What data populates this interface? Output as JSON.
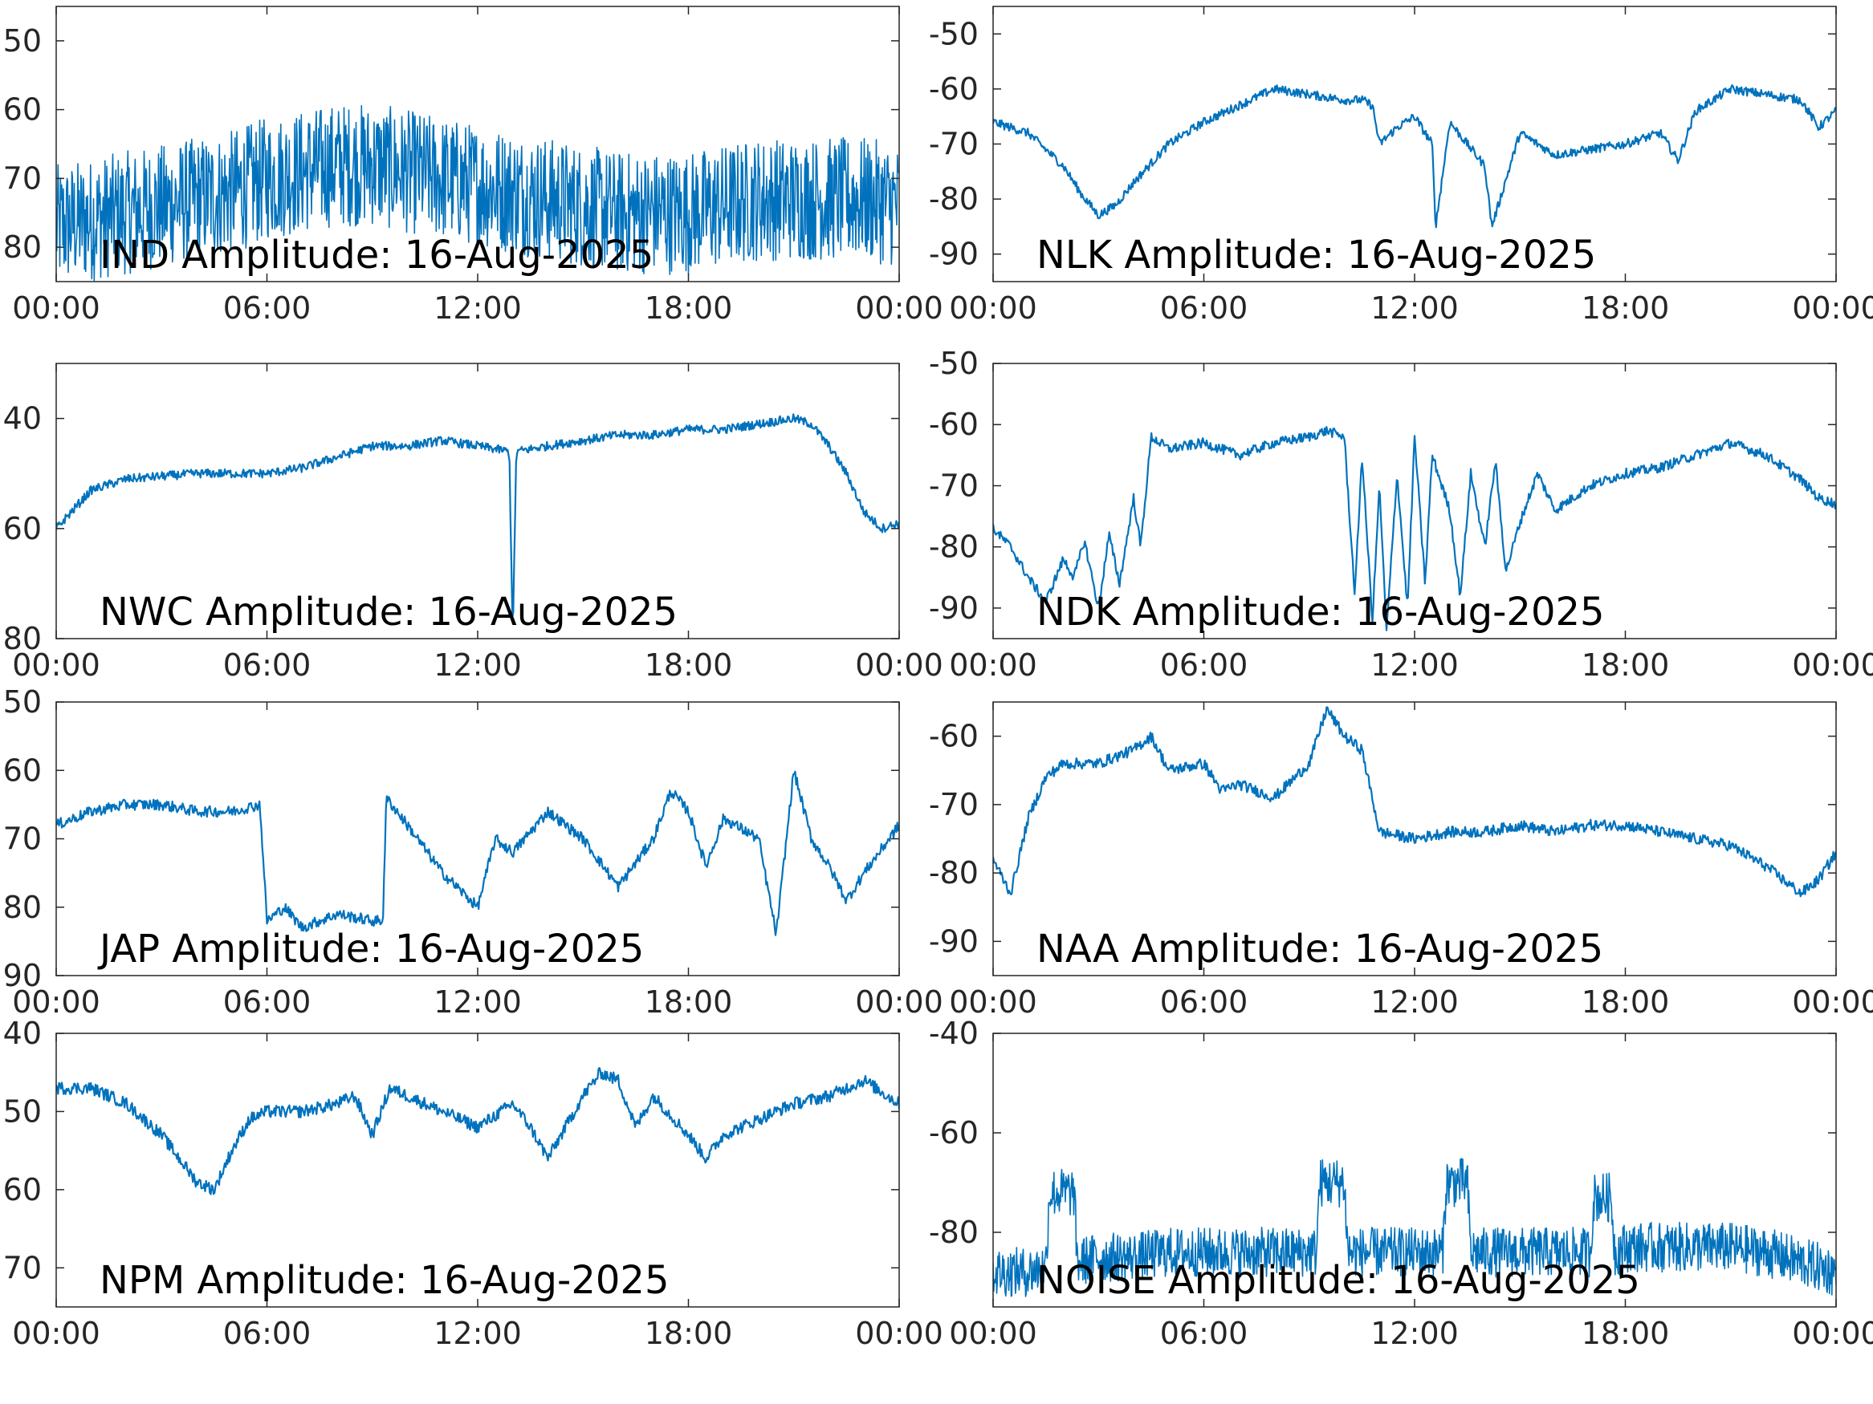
{
  "chart_data": [
    {
      "type": "line",
      "title": "IND Amplitude: 16-Aug-2025",
      "x_ticks": [
        "00:00",
        "06:00",
        "12:00",
        "18:00",
        "00:00"
      ],
      "y_ticks": [
        "50",
        "60",
        "70",
        "80"
      ],
      "xlim": [
        0,
        24
      ],
      "ylim": [
        -85,
        -45
      ],
      "line_color": "#0072bd",
      "style": "noisy",
      "series": [
        {
          "x": [
            0,
            1,
            2,
            3,
            4,
            5,
            6,
            7,
            8,
            9,
            10,
            11,
            12,
            13,
            14,
            15,
            16,
            17,
            18,
            19,
            20,
            21,
            22,
            23,
            24
          ],
          "values": [
            -77,
            -76,
            -75,
            -74,
            -73,
            -72,
            -70,
            -69,
            -68,
            -68,
            -69,
            -70,
            -71,
            -72,
            -73,
            -74,
            -75,
            -75,
            -75,
            -74,
            -73,
            -73,
            -73,
            -73,
            -74
          ]
        }
      ]
    },
    {
      "type": "line",
      "title": "NLK Amplitude: 16-Aug-2025",
      "x_ticks": [
        "00:00",
        "06:00",
        "12:00",
        "18:00",
        "00:00"
      ],
      "y_ticks": [
        "-50",
        "-60",
        "-70",
        "-80",
        "-90"
      ],
      "xlim": [
        0,
        24
      ],
      "ylim": [
        -95,
        -45
      ],
      "line_color": "#0072bd",
      "style": "line",
      "series": [
        {
          "x": [
            0,
            1,
            2,
            2.5,
            3,
            3.5,
            4,
            5,
            6,
            7,
            8,
            9,
            10,
            10.5,
            10.8,
            11,
            11.5,
            12,
            12.5,
            12.6,
            13,
            14,
            14.2,
            15,
            16,
            17,
            18,
            19,
            19.5,
            20,
            21,
            22,
            23,
            23.5,
            24
          ],
          "values": [
            -66,
            -68,
            -74,
            -79,
            -83,
            -81,
            -77,
            -70,
            -66,
            -63,
            -60,
            -61,
            -62,
            -62,
            -63,
            -70,
            -67,
            -65,
            -70,
            -85,
            -66,
            -74,
            -85,
            -68,
            -72,
            -71,
            -70,
            -68,
            -73,
            -64,
            -60,
            -61,
            -62,
            -67,
            -64
          ]
        }
      ]
    },
    {
      "type": "line",
      "title": "NWC Amplitude: 16-Aug-2025",
      "x_ticks": [
        "00:00",
        "06:00",
        "12:00",
        "18:00",
        "00:00"
      ],
      "y_ticks": [
        "40",
        "60",
        "80"
      ],
      "xlim": [
        0,
        24
      ],
      "ylim": [
        -80,
        -30
      ],
      "line_color": "#0072bd",
      "style": "line",
      "series": [
        {
          "x": [
            0,
            1,
            2,
            4,
            6,
            7,
            8,
            9,
            10,
            11,
            12,
            12.9,
            13,
            13.1,
            14,
            15,
            16,
            17,
            18,
            19,
            20,
            21,
            21.5,
            22,
            22.5,
            23,
            23.5,
            24
          ],
          "values": [
            -60,
            -53,
            -51,
            -50,
            -50,
            -49,
            -47,
            -45,
            -45,
            -44,
            -45,
            -46,
            -80,
            -46,
            -45,
            -44,
            -43,
            -43,
            -42,
            -42,
            -41,
            -40,
            -41,
            -45,
            -50,
            -57,
            -60,
            -59
          ]
        }
      ]
    },
    {
      "type": "line",
      "title": "NDK Amplitude: 16-Aug-2025",
      "x_ticks": [
        "00:00",
        "06:00",
        "12:00",
        "18:00",
        "00:00"
      ],
      "y_ticks": [
        "-50",
        "-60",
        "-70",
        "-80",
        "-90"
      ],
      "xlim": [
        0,
        24
      ],
      "ylim": [
        -95,
        -50
      ],
      "line_color": "#0072bd",
      "style": "line",
      "series": [
        {
          "x": [
            0,
            0.5,
            1,
            1.5,
            2,
            2.3,
            2.6,
            3,
            3.3,
            3.6,
            4,
            4.2,
            4.5,
            5,
            6,
            7,
            8,
            9,
            9.5,
            10,
            10.3,
            10.5,
            10.8,
            11,
            11.2,
            11.5,
            11.8,
            12,
            12.3,
            12.5,
            13,
            13.3,
            13.6,
            14,
            14.3,
            14.6,
            15,
            15.5,
            16,
            17,
            18,
            19,
            20,
            21,
            22,
            23,
            23.5,
            24
          ],
          "values": [
            -77,
            -80,
            -85,
            -89,
            -82,
            -85,
            -79,
            -90,
            -78,
            -86,
            -72,
            -80,
            -62,
            -64,
            -63,
            -65,
            -63,
            -62,
            -61,
            -62,
            -88,
            -65,
            -92,
            -70,
            -94,
            -68,
            -90,
            -62,
            -86,
            -65,
            -74,
            -88,
            -68,
            -80,
            -66,
            -84,
            -76,
            -68,
            -74,
            -70,
            -68,
            -67,
            -65,
            -63,
            -65,
            -69,
            -72,
            -73
          ]
        }
      ]
    },
    {
      "type": "line",
      "title": "JAP Amplitude: 16-Aug-2025",
      "x_ticks": [
        "00:00",
        "06:00",
        "12:00",
        "18:00",
        "00:00"
      ],
      "y_ticks": [
        "50",
        "60",
        "70",
        "80",
        "90"
      ],
      "xlim": [
        0,
        24
      ],
      "ylim": [
        -90,
        -50
      ],
      "line_color": "#0072bd",
      "style": "line",
      "series": [
        {
          "x": [
            0,
            1,
            2,
            3,
            4,
            5,
            5.8,
            6,
            6.5,
            7,
            8,
            9,
            9.3,
            9.4,
            10,
            11,
            12,
            12.5,
            13,
            14,
            14.5,
            15,
            16,
            17,
            17.5,
            18,
            18.5,
            19,
            20,
            20.5,
            21,
            21.5,
            22,
            22.5,
            23,
            24
          ],
          "values": [
            -68,
            -66,
            -65,
            -65,
            -66,
            -66,
            -65,
            -82,
            -80,
            -83,
            -81,
            -82,
            -82,
            -64,
            -68,
            -75,
            -80,
            -70,
            -72,
            -66,
            -68,
            -70,
            -77,
            -70,
            -63,
            -66,
            -74,
            -67,
            -70,
            -84,
            -60,
            -70,
            -74,
            -79,
            -75,
            -68
          ]
        }
      ]
    },
    {
      "type": "line",
      "title": "NAA Amplitude: 16-Aug-2025",
      "x_ticks": [
        "00:00",
        "06:00",
        "12:00",
        "18:00",
        "00:00"
      ],
      "y_ticks": [
        "-60",
        "-70",
        "-80",
        "-90"
      ],
      "xlim": [
        0,
        24
      ],
      "ylim": [
        -95,
        -55
      ],
      "line_color": "#0072bd",
      "style": "line",
      "series": [
        {
          "x": [
            0,
            0.5,
            1,
            1.5,
            2,
            3,
            4,
            4.5,
            5,
            6,
            6.5,
            7,
            8,
            9,
            9.5,
            10,
            10.5,
            11,
            12,
            13,
            14,
            15,
            16,
            17,
            18,
            19,
            20,
            21,
            22,
            23,
            23.5,
            24
          ],
          "values": [
            -78,
            -83,
            -72,
            -66,
            -64,
            -64,
            -62,
            -60,
            -65,
            -64,
            -68,
            -67,
            -69,
            -64,
            -56,
            -60,
            -62,
            -74,
            -75,
            -74,
            -74,
            -73,
            -74,
            -73,
            -73,
            -74,
            -75,
            -76,
            -79,
            -83,
            -81,
            -77
          ]
        }
      ]
    },
    {
      "type": "line",
      "title": "NPM Amplitude: 16-Aug-2025",
      "x_ticks": [
        "00:00",
        "06:00",
        "12:00",
        "18:00",
        "00:00"
      ],
      "y_ticks": [
        "40",
        "50",
        "60",
        "70"
      ],
      "xlim": [
        0,
        24
      ],
      "ylim": [
        -75,
        -40
      ],
      "line_color": "#0072bd",
      "style": "line",
      "series": [
        {
          "x": [
            0,
            1,
            2,
            3,
            3.5,
            4,
            4.5,
            5,
            5.5,
            6,
            7,
            8,
            8.5,
            9,
            9.5,
            10,
            11,
            12,
            13,
            13.5,
            14,
            14.5,
            15,
            15.5,
            16,
            16.5,
            17,
            18,
            18.5,
            19,
            20,
            21,
            22,
            23,
            24
          ],
          "values": [
            -47,
            -47,
            -49,
            -53,
            -56,
            -59,
            -60,
            -55,
            -51,
            -50,
            -50,
            -49,
            -48,
            -53,
            -47,
            -48,
            -50,
            -52,
            -49,
            -52,
            -56,
            -52,
            -48,
            -45,
            -46,
            -52,
            -48,
            -53,
            -56,
            -53,
            -51,
            -49,
            -48,
            -46,
            -49
          ]
        }
      ]
    },
    {
      "type": "line",
      "title": "NOISE Amplitude: 16-Aug-2025",
      "x_ticks": [
        "00:00",
        "06:00",
        "12:00",
        "18:00",
        "00:00"
      ],
      "y_ticks": [
        "-40",
        "-60",
        "-80"
      ],
      "xlim": [
        0,
        24
      ],
      "ylim": [
        -95,
        -40
      ],
      "line_color": "#0072bd",
      "style": "noisy",
      "series": [
        {
          "x": [
            0,
            1,
            1.5,
            1.6,
            2.3,
            2.4,
            3,
            4,
            5,
            6,
            7,
            8,
            9,
            9.2,
            9.3,
            10,
            10.1,
            11,
            12,
            12.8,
            12.9,
            13.5,
            13.6,
            14,
            15,
            16,
            17,
            17.1,
            17.6,
            17.7,
            18,
            19,
            20,
            21,
            22,
            23,
            24
          ],
          "values": [
            -88,
            -88,
            -87,
            -72,
            -72,
            -86,
            -85,
            -85,
            -84,
            -84,
            -84,
            -84,
            -84,
            -84,
            -70,
            -70,
            -84,
            -84,
            -84,
            -84,
            -70,
            -70,
            -84,
            -84,
            -84,
            -84,
            -84,
            -73,
            -73,
            -84,
            -83,
            -83,
            -83,
            -83,
            -84,
            -86,
            -88
          ]
        }
      ]
    }
  ]
}
